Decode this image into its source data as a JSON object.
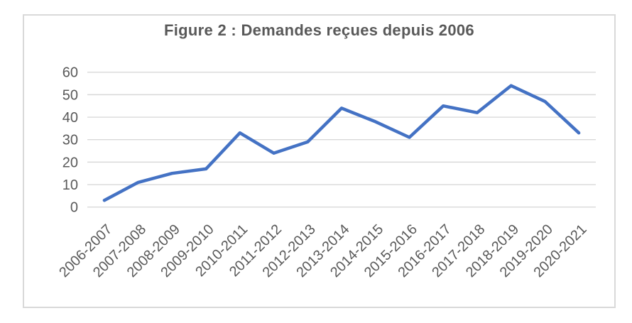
{
  "chart_data": {
    "type": "line",
    "title": "Figure 2 : Demandes reçues depuis 2006",
    "categories": [
      "2006-2007",
      "2007-2008",
      "2008-2009",
      "2009-2010",
      "2010-2011",
      "2011-2012",
      "2012-2013",
      "2013-2014",
      "2014-2015",
      "2015-2016",
      "2016-2017",
      "2017-2018",
      "2018-2019",
      "2019-2020",
      "2020-2021"
    ],
    "values": [
      3,
      11,
      15,
      17,
      33,
      24,
      29,
      44,
      38,
      31,
      45,
      42,
      54,
      47,
      33
    ],
    "xlabel": "",
    "ylabel": "",
    "ylim": [
      0,
      60
    ],
    "ytick_step": 10,
    "ytick_labels": [
      "0",
      "10",
      "20",
      "30",
      "40",
      "50",
      "60"
    ],
    "grid": true,
    "legend": false,
    "x_label_rotation_deg": 45,
    "colors": {
      "line": "#4472C4",
      "grid": "#D9D9D9",
      "border": "#D9D9D9",
      "text": "#595959",
      "background": "#FFFFFF"
    }
  }
}
